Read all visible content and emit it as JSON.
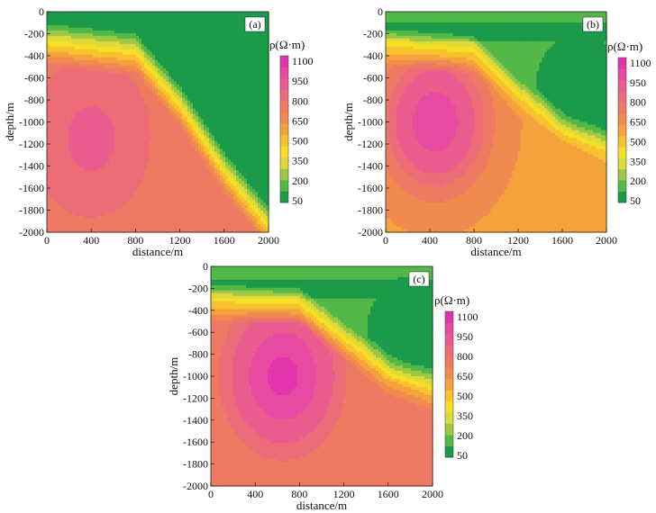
{
  "chart_data": [
    {
      "type": "heatmap",
      "panel_label": "(a)",
      "xlabel": "distance/m",
      "ylabel": "depth/m",
      "x_ticks": [
        0,
        400,
        800,
        1200,
        1600,
        2000
      ],
      "y_ticks": [
        0,
        -200,
        -400,
        -600,
        -800,
        -1000,
        -1200,
        -1400,
        -1600,
        -1800,
        -2000
      ],
      "xlim": [
        0,
        2000
      ],
      "ylim": [
        -2000,
        0
      ],
      "colorbar": {
        "title": "ρ(Ω·m)",
        "ticks": [
          50,
          200,
          350,
          500,
          650,
          800,
          950,
          1100
        ]
      },
      "features": {
        "surface_resistivity": 120,
        "block_resistivity": 700,
        "peak": {
          "x": 400,
          "depth": -1150,
          "resistivity": 830
        },
        "low_anomaly": {
          "x": 1950,
          "depth": -700,
          "resistivity": 40
        },
        "interface": [
          {
            "x": 0,
            "depth": -330
          },
          {
            "x": 800,
            "depth": -420
          },
          {
            "x": 1200,
            "depth": -900
          },
          {
            "x": 1600,
            "depth": -1500
          },
          {
            "x": 2000,
            "depth": -2000
          }
        ]
      }
    },
    {
      "type": "heatmap",
      "panel_label": "(b)",
      "xlabel": "distance/m",
      "ylabel": "depth/m",
      "x_ticks": [
        0,
        400,
        800,
        1200,
        1600,
        2000
      ],
      "y_ticks": [
        0,
        -200,
        -400,
        -600,
        -800,
        -1000,
        -1200,
        -1400,
        -1600,
        -1800,
        -2000
      ],
      "xlim": [
        0,
        2000
      ],
      "ylim": [
        -2000,
        0
      ],
      "colorbar": {
        "title": "ρ(Ω·m)",
        "ticks": [
          50,
          200,
          350,
          500,
          650,
          800,
          950,
          1100
        ]
      },
      "features": {
        "surface_resistivity": 130,
        "block_resistivity": 560,
        "peak": {
          "x": 450,
          "depth": -1000,
          "resistivity": 1050
        },
        "low_anomaly": {
          "x": 1750,
          "depth": -700,
          "resistivity": 40
        },
        "near_surface_low_layer_depth": -180,
        "interface": [
          {
            "x": 0,
            "depth": -340
          },
          {
            "x": 800,
            "depth": -400
          },
          {
            "x": 1200,
            "depth": -800
          },
          {
            "x": 1600,
            "depth": -1100
          },
          {
            "x": 2000,
            "depth": -1300
          }
        ]
      }
    },
    {
      "type": "heatmap",
      "panel_label": "(c)",
      "xlabel": "distance/m",
      "ylabel": "depth/m",
      "x_ticks": [
        0,
        400,
        800,
        1200,
        1600,
        2000
      ],
      "y_ticks": [
        0,
        -200,
        -400,
        -600,
        -800,
        -1000,
        -1200,
        -1400,
        -1600,
        -1800,
        -2000
      ],
      "xlim": [
        0,
        2000
      ],
      "ylim": [
        -2000,
        0
      ],
      "colorbar": {
        "title": "ρ(Ω·m)",
        "ticks": [
          50,
          200,
          350,
          500,
          650,
          800,
          950,
          1100
        ]
      },
      "features": {
        "surface_resistivity": 130,
        "block_resistivity": 650,
        "peak": {
          "x": 650,
          "depth": -1000,
          "resistivity": 1150
        },
        "low_anomaly": {
          "x": 1800,
          "depth": -600,
          "resistivity": 40
        },
        "near_surface_low_layer_depth": -200,
        "interface": [
          {
            "x": 0,
            "depth": -350
          },
          {
            "x": 800,
            "depth": -380
          },
          {
            "x": 1200,
            "depth": -700
          },
          {
            "x": 1600,
            "depth": -1000
          },
          {
            "x": 2000,
            "depth": -1150
          }
        ]
      }
    }
  ],
  "palette": [
    "#1b9a4a",
    "#53b848",
    "#9cc845",
    "#dcd93a",
    "#f6e026",
    "#f8c12e",
    "#f4a33c",
    "#f08a4e",
    "#ee7a63",
    "#ec6c78",
    "#ea5c8e",
    "#e84aa2",
    "#e235ad"
  ]
}
